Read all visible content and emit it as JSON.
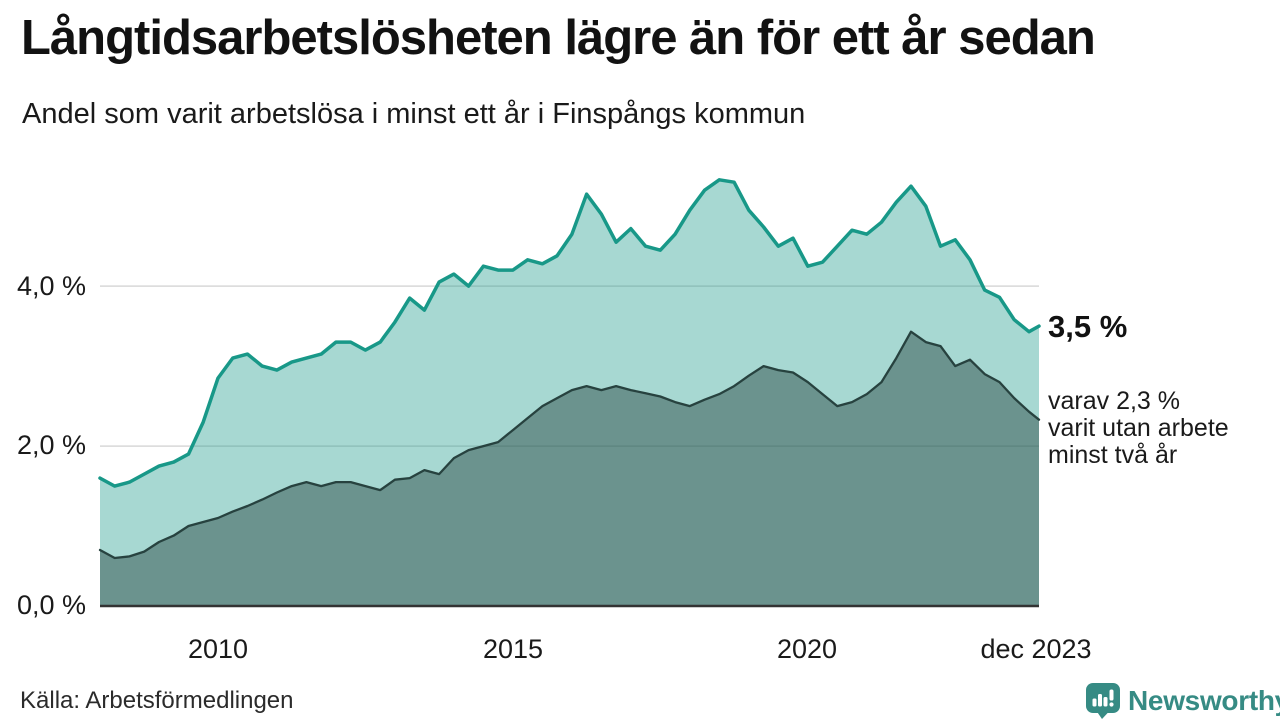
{
  "header": {
    "title": "Långtidsarbetslösheten lägre än för ett år sedan",
    "subtitle": "Andel som varit arbetslösa i minst ett år i Finspångs kommun"
  },
  "chart_data": {
    "type": "area",
    "title": "Långtidsarbetslösheten lägre än för ett år sedan",
    "subtitle": "Andel som varit arbetslösa i minst ett år i Finspångs kommun",
    "x_unit": "decimal_year_monthly_series",
    "x_range": [
      2008.0,
      2023.92
    ],
    "ylim": [
      0,
      5.64
    ],
    "grid": "horizontal",
    "legend": "none",
    "y_ticks": [
      {
        "value": 4,
        "label": "4,0 %"
      },
      {
        "value": 2,
        "label": "2,0 %"
      },
      {
        "value": 0,
        "label": "0,0 %"
      }
    ],
    "x_ticks": [
      {
        "value": 2010,
        "label": "2010"
      },
      {
        "value": 2015,
        "label": "2015"
      },
      {
        "value": 2020,
        "label": "2020"
      },
      {
        "value": 2023.92,
        "label": "dec 2023"
      }
    ],
    "x": [
      2008,
      2008.25,
      2008.5,
      2008.75,
      2009,
      2009.25,
      2009.5,
      2009.75,
      2010,
      2010.25,
      2010.5,
      2010.75,
      2011,
      2011.25,
      2011.5,
      2011.75,
      2012,
      2012.25,
      2012.5,
      2012.75,
      2013,
      2013.25,
      2013.5,
      2013.75,
      2014,
      2014.25,
      2014.5,
      2014.75,
      2015,
      2015.25,
      2015.5,
      2015.75,
      2016,
      2016.25,
      2016.5,
      2016.75,
      2017,
      2017.25,
      2017.5,
      2017.75,
      2018,
      2018.25,
      2018.5,
      2018.75,
      2019,
      2019.25,
      2019.5,
      2019.75,
      2020,
      2020.25,
      2020.5,
      2020.75,
      2021,
      2021.25,
      2021.5,
      2021.75,
      2022,
      2022.25,
      2022.5,
      2022.75,
      2023,
      2023.25,
      2023.5,
      2023.75,
      2023.92
    ],
    "series": [
      {
        "name": "Arbetslösa minst ett år",
        "color": "#189888",
        "fill_rgba": "rgba(24,152,136,0.38)",
        "stroke_width": 3.5,
        "values": [
          1.6,
          1.5,
          1.55,
          1.65,
          1.75,
          1.8,
          1.9,
          2.3,
          2.85,
          3.1,
          3.15,
          3.0,
          2.95,
          3.05,
          3.1,
          3.15,
          3.3,
          3.3,
          3.2,
          3.3,
          3.55,
          3.85,
          3.7,
          4.05,
          4.15,
          4.0,
          4.25,
          4.2,
          4.2,
          4.33,
          4.28,
          4.38,
          4.65,
          5.15,
          4.9,
          4.55,
          4.72,
          4.5,
          4.45,
          4.65,
          4.95,
          5.2,
          5.33,
          5.3,
          4.95,
          4.74,
          4.5,
          4.6,
          4.25,
          4.3,
          4.5,
          4.7,
          4.65,
          4.8,
          5.05,
          5.25,
          5.0,
          4.5,
          4.58,
          4.33,
          3.95,
          3.86,
          3.58,
          3.43,
          3.5
        ]
      },
      {
        "name": "Arbetslösa minst två år",
        "color": "#27423f",
        "fill_rgba": "rgba(35,64,60,0.45)",
        "stroke_width": 2.3,
        "values": [
          0.7,
          0.6,
          0.62,
          0.68,
          0.8,
          0.88,
          1.0,
          1.05,
          1.1,
          1.18,
          1.25,
          1.33,
          1.42,
          1.5,
          1.55,
          1.5,
          1.55,
          1.55,
          1.5,
          1.45,
          1.58,
          1.6,
          1.7,
          1.65,
          1.85,
          1.95,
          2.0,
          2.05,
          2.2,
          2.35,
          2.5,
          2.6,
          2.7,
          2.75,
          2.7,
          2.75,
          2.7,
          2.66,
          2.62,
          2.55,
          2.5,
          2.58,
          2.65,
          2.75,
          2.88,
          3.0,
          2.95,
          2.92,
          2.8,
          2.65,
          2.5,
          2.55,
          2.65,
          2.8,
          3.1,
          3.43,
          3.3,
          3.25,
          3.0,
          3.08,
          2.9,
          2.8,
          2.6,
          2.43,
          2.33
        ]
      }
    ],
    "annotations": {
      "primary_value": "3,5 %",
      "secondary_lines": [
        "varav 2,3 %",
        "varit utan arbete",
        "minst två år"
      ]
    }
  },
  "footer": {
    "source": "Källa: Arbetsförmedlingen",
    "brand_name": "Newsworthy"
  },
  "colors": {
    "line_total": "#189888",
    "line_two_years": "#27423f",
    "fill_total": "#a3d6d0",
    "fill_two_years": "#6d9d99",
    "gridline": "#d8d8d8",
    "baseline": "#333333",
    "brand_teal": "#368b84",
    "text": "#1a1a1a"
  }
}
